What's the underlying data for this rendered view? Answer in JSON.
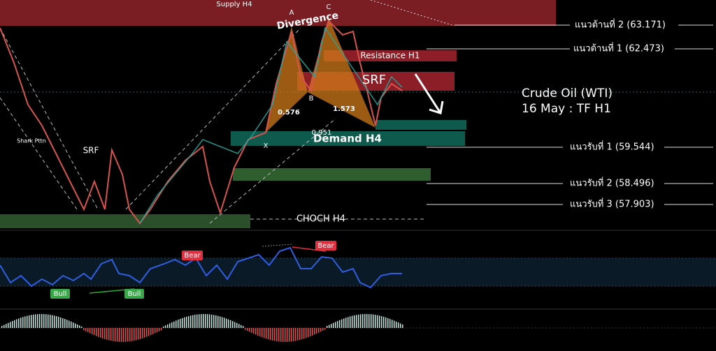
{
  "header": {
    "title": "Crude Oil (WTI)",
    "subtitle": "16 May : TF H1"
  },
  "zones": {
    "supply": "Supply H4",
    "resistance": "Resistance H1",
    "srf_main": "SRF",
    "demand": "Demand H4",
    "choch": "CHOCH H4"
  },
  "levels": [
    "แนวต้านที่ 2 (63.171)",
    "แนวต้านที่ 1 (62.473)",
    "แนวรับที่ 1 (59.544)",
    "แนวรับที่ 2  (58.496)",
    "แนวรับที่ 3  (57.903)"
  ],
  "pattern": {
    "name": "Divergence",
    "points": [
      "X",
      "A",
      "B",
      "C"
    ],
    "ratios": [
      "0.576",
      "1.573",
      "0.951"
    ],
    "shark": "Shark Pttn",
    "srf_left": "SRF"
  },
  "indicator": {
    "labels": [
      "Bear",
      "Bear",
      "Bull",
      "Bull"
    ]
  }
}
